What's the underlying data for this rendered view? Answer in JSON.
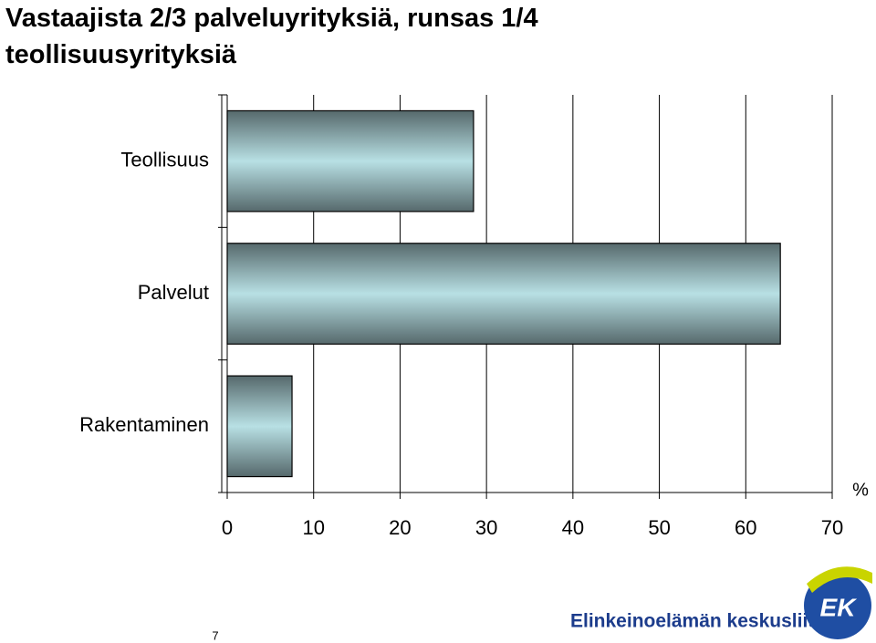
{
  "chart_data": {
    "type": "bar",
    "orientation": "horizontal",
    "title": "Vastaajista 2/3 palveluyrityksiä, runsas 1/4 teollisuusyrityksiä",
    "categories": [
      "Teollisuus",
      "Palvelut",
      "Rakentaminen"
    ],
    "values": [
      28.5,
      64,
      7.5
    ],
    "color": "#b8e0e4",
    "x_label": "%",
    "xlim": [
      0,
      70
    ],
    "xticks": [
      0,
      10,
      20,
      30,
      40,
      50,
      60,
      70
    ],
    "grid": true
  },
  "footer": {
    "page_number": "7",
    "organization": "Elinkeinoelämän keskusliitto",
    "logo": "EK"
  }
}
